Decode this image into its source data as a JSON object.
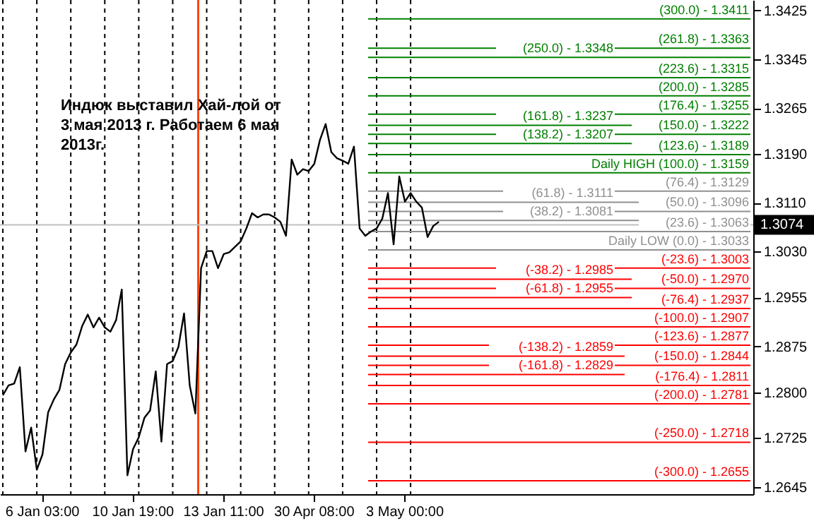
{
  "chart_data": {
    "type": "line",
    "grid": false,
    "categories": [
      null,
      null,
      null,
      null,
      null,
      null,
      null,
      "6 Jan 03:00",
      null,
      null,
      null,
      null,
      null,
      null,
      null,
      null,
      null,
      null,
      null,
      null,
      null,
      null,
      null,
      "10 Jan 19:00",
      null,
      null,
      null,
      null,
      null,
      null,
      null,
      null,
      null,
      null,
      null,
      null,
      null,
      null,
      null,
      "13 Jan 11:00",
      null,
      null,
      null,
      null,
      null,
      null,
      null,
      null,
      null,
      null,
      null,
      null,
      null,
      null,
      null,
      "30 Apr 08:00",
      null,
      null,
      null,
      null,
      null,
      null,
      null,
      null,
      null,
      null,
      null,
      null,
      null,
      null,
      null,
      "3 May 00:00",
      null,
      null,
      null,
      null,
      null,
      null,
      null,
      null,
      null,
      null,
      null,
      null,
      null,
      null,
      null,
      null,
      null,
      null,
      null,
      null,
      null,
      null,
      null,
      null,
      null,
      null,
      null,
      null,
      null,
      null,
      null,
      null,
      null,
      null,
      null,
      null,
      null,
      null,
      null,
      null,
      null,
      null,
      null,
      null,
      null,
      null,
      null,
      null,
      null,
      null,
      null,
      null,
      null,
      null,
      null,
      null,
      null,
      null,
      null,
      null,
      null
    ],
    "ylim": [
      1.2633,
      1.3442
    ],
    "yticks": [
      {
        "value": 1.3425,
        "label": "1.3425"
      },
      {
        "value": 1.3345,
        "label": "1.3345"
      },
      {
        "value": 1.3265,
        "label": "1.3265"
      },
      {
        "value": 1.319,
        "label": "1.3190"
      },
      {
        "value": 1.311,
        "label": "1.3110"
      },
      {
        "value": 1.303,
        "label": "1.3030"
      },
      {
        "value": 1.2955,
        "label": "1.2955"
      },
      {
        "value": 1.2875,
        "label": "1.2875"
      },
      {
        "value": 1.28,
        "label": "1.2800"
      },
      {
        "value": 1.2725,
        "label": "1.2725"
      },
      {
        "value": 1.2645,
        "label": "1.2645"
      }
    ],
    "series": [
      {
        "color": "#000000",
        "values": [
          1.2795,
          1.2811,
          1.2814,
          1.2841,
          1.2703,
          1.2742,
          1.2673,
          1.2698,
          1.2767,
          1.2788,
          1.2804,
          1.2846,
          1.2865,
          1.2878,
          1.2908,
          1.2927,
          1.2906,
          1.2922,
          1.2906,
          1.2899,
          1.2918,
          1.2968,
          1.2664,
          1.2707,
          1.2726,
          1.2758,
          1.277,
          1.2834,
          1.2719,
          1.2846,
          1.2851,
          1.2874,
          1.2929,
          1.2811,
          1.2765,
          1.3003,
          1.3031,
          1.3031,
          1.3003,
          1.3026,
          1.3029,
          1.3038,
          1.3047,
          1.3068,
          1.3093,
          1.3086,
          1.3091,
          1.3091,
          1.3086,
          1.3079,
          1.3056,
          1.3181,
          1.3156,
          1.3165,
          1.3162,
          1.3174,
          1.3213,
          1.3239,
          1.3193,
          1.3183,
          1.3179,
          1.3174,
          1.3202,
          1.3068,
          1.3056,
          1.3063,
          1.3068,
          1.3084,
          1.3126,
          1.3042,
          1.3153,
          1.3112,
          1.3126,
          1.3112,
          1.3102,
          1.3054,
          1.3072,
          1.3079,
          null,
          null,
          null,
          null,
          null,
          null,
          null,
          null,
          null,
          null,
          null,
          null,
          null,
          null,
          null,
          null,
          null,
          null,
          null,
          null,
          null,
          null,
          null,
          null,
          null,
          null,
          null,
          null,
          null,
          null,
          null,
          null,
          null,
          null,
          null,
          null,
          null,
          null,
          null,
          null,
          null,
          null,
          null,
          null,
          null,
          null,
          null,
          null,
          null,
          null,
          null,
          null,
          null,
          null,
          null
        ]
      }
    ],
    "annotations": [
      "Индюк выставил Хай-лой от\n3 мая 2013 г. Работаем 6 мая\n2013г.",
      {
        "text": "(300.0) - 1.3411",
        "y": 1.3411
      },
      {
        "text": "(261.8) - 1.3363",
        "y": 1.3363
      },
      {
        "text": "(250.0) - 1.3348",
        "y": 1.3348
      },
      {
        "text": "(223.6) - 1.3315",
        "y": 1.3315
      },
      {
        "text": "(200.0) - 1.3285",
        "y": 1.3285
      },
      {
        "text": "(176.4) - 1.3255",
        "y": 1.3255
      },
      {
        "text": "(161.8) - 1.3237",
        "y": 1.3237
      },
      {
        "text": "(150.0) - 1.3222",
        "y": 1.3222
      },
      {
        "text": "(138.2) - 1.3207",
        "y": 1.3207
      },
      {
        "text": "(123.6) - 1.3189",
        "y": 1.3189
      },
      {
        "text": "Daily HIGH (100.0) - 1.3159",
        "y": 1.3159
      },
      {
        "text": "(76.4) - 1.3129",
        "y": 1.3129
      },
      {
        "text": "(61.8) - 1.3111",
        "y": 1.3111
      },
      {
        "text": "(50.0) - 1.3096",
        "y": 1.3096
      },
      {
        "text": "(38.2) - 1.3081",
        "y": 1.3081
      },
      {
        "text": "(23.6) - 1.3063",
        "y": 1.3063
      },
      {
        "text": "Daily LOW (0.0) - 1.3033",
        "y": 1.3033
      },
      {
        "text": "(-23.6) - 1.3003",
        "y": 1.3003
      },
      {
        "text": "(-38.2) - 1.2985",
        "y": 1.2985
      },
      {
        "text": "(-50.0) - 1.2970",
        "y": 1.297
      },
      {
        "text": "(-61.8) - 1.2955",
        "y": 1.2955
      },
      {
        "text": "(-76.4) - 1.2937",
        "y": 1.2937
      },
      {
        "text": "(-100.0) - 1.2907",
        "y": 1.2907
      },
      {
        "text": "(-123.6) - 1.2877",
        "y": 1.2877
      },
      {
        "text": "(-138.2) - 1.2859",
        "y": 1.2859
      },
      {
        "text": "(-150.0) - 1.2844",
        "y": 1.2844
      },
      {
        "text": "(-161.8) - 1.2829",
        "y": 1.2829
      },
      {
        "text": "(-176.4) - 1.2811",
        "y": 1.2811
      },
      {
        "text": "(-200.0) - 1.2781",
        "y": 1.2781
      },
      {
        "text": "(-250.0) - 1.2718",
        "y": 1.2718
      },
      {
        "text": "(-300.0) - 1.2655",
        "y": 1.2655
      }
    ],
    "ref_lines": [
      {
        "axis": "y",
        "value": 1.3074,
        "label": "1.3074",
        "color": "#c0c0c0"
      },
      {
        "axis": "y",
        "value": 1.3411,
        "color": "#008000"
      },
      {
        "axis": "y",
        "value": 1.3363,
        "color": "#008000"
      },
      {
        "axis": "y",
        "value": 1.3348,
        "color": "#008000"
      },
      {
        "axis": "y",
        "value": 1.3315,
        "color": "#008000"
      },
      {
        "axis": "y",
        "value": 1.3285,
        "color": "#008000"
      },
      {
        "axis": "y",
        "value": 1.3255,
        "color": "#008000"
      },
      {
        "axis": "y",
        "value": 1.3237,
        "color": "#008000"
      },
      {
        "axis": "y",
        "value": 1.3222,
        "color": "#008000"
      },
      {
        "axis": "y",
        "value": 1.3207,
        "color": "#008000"
      },
      {
        "axis": "y",
        "value": 1.3189,
        "color": "#008000"
      },
      {
        "axis": "y",
        "value": 1.3159,
        "color": "#008000"
      },
      {
        "axis": "y",
        "value": 1.3129,
        "color": "#909090"
      },
      {
        "axis": "y",
        "value": 1.3111,
        "color": "#909090"
      },
      {
        "axis": "y",
        "value": 1.3096,
        "color": "#909090"
      },
      {
        "axis": "y",
        "value": 1.3081,
        "color": "#909090"
      },
      {
        "axis": "y",
        "value": 1.3063,
        "color": "#909090"
      },
      {
        "axis": "y",
        "value": 1.3033,
        "color": "#909090"
      },
      {
        "axis": "y",
        "value": 1.3003,
        "color": "#ff0000"
      },
      {
        "axis": "y",
        "value": 1.2985,
        "color": "#ff0000"
      },
      {
        "axis": "y",
        "value": 1.297,
        "color": "#ff0000"
      },
      {
        "axis": "y",
        "value": 1.2955,
        "color": "#ff0000"
      },
      {
        "axis": "y",
        "value": 1.2937,
        "color": "#ff0000"
      },
      {
        "axis": "y",
        "value": 1.2907,
        "color": "#ff0000"
      },
      {
        "axis": "y",
        "value": 1.2877,
        "color": "#ff0000"
      },
      {
        "axis": "y",
        "value": 1.2859,
        "color": "#ff0000"
      },
      {
        "axis": "y",
        "value": 1.2844,
        "color": "#ff0000"
      },
      {
        "axis": "y",
        "value": 1.2829,
        "color": "#ff0000"
      },
      {
        "axis": "y",
        "value": 1.2811,
        "color": "#ff0000"
      },
      {
        "axis": "y",
        "value": 1.2781,
        "color": "#ff0000"
      },
      {
        "axis": "y",
        "value": 1.2718,
        "color": "#ff0000"
      },
      {
        "axis": "y",
        "value": 1.2655,
        "color": "#ff0000"
      }
    ]
  }
}
